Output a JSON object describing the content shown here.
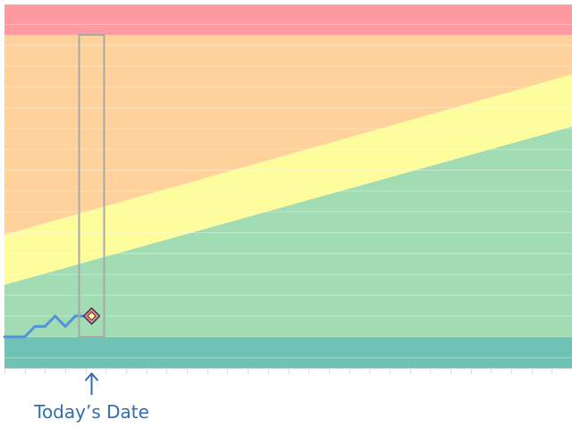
{
  "chart_data": {
    "type": "area",
    "title": "",
    "xlabel": "",
    "ylabel": "",
    "grid": true,
    "legend": "none",
    "xlim": [
      0,
      28
    ],
    "ylim": [
      0,
      16
    ],
    "zone_colors": {
      "red": "#ff9aa0",
      "orange": "#fed29a",
      "yellow": "#fefd9e",
      "green": "#a2dcb2",
      "teal": "#6fc3b4"
    },
    "zones": [
      {
        "name": "teal",
        "lower_start": 0,
        "lower_end": 0,
        "upper_start": 1.5,
        "upper_end": 1.5
      },
      {
        "name": "green",
        "lower_start": 1.5,
        "lower_end": 1.5,
        "upper_start": 4.0,
        "upper_end": 11.6
      },
      {
        "name": "yellow",
        "lower_start": 4.0,
        "lower_end": 11.6,
        "upper_start": 6.4,
        "upper_end": 14.1
      },
      {
        "name": "orange",
        "lower_start": 6.4,
        "lower_end": 14.1,
        "upper_start": 16.0,
        "upper_end": 16.0
      },
      {
        "name": "red",
        "lower_start": 16.0,
        "lower_end": 16.0,
        "upper_start": 17.5,
        "upper_end": 17.5
      }
    ],
    "series": [
      {
        "color": "#5592dc",
        "x": [
          0,
          1,
          1.5,
          2,
          2.5,
          3,
          3.5,
          4
        ],
        "y": [
          1.5,
          1.5,
          2.0,
          2.0,
          2.5,
          2.0,
          2.5,
          2.5
        ]
      }
    ],
    "today": {
      "x": 4.3,
      "value": 2.5,
      "label": "Today’s Date",
      "label_color": "#2e6db3",
      "marker_fill": "#f07ea8",
      "marker_inner": "#fefd9e"
    }
  }
}
